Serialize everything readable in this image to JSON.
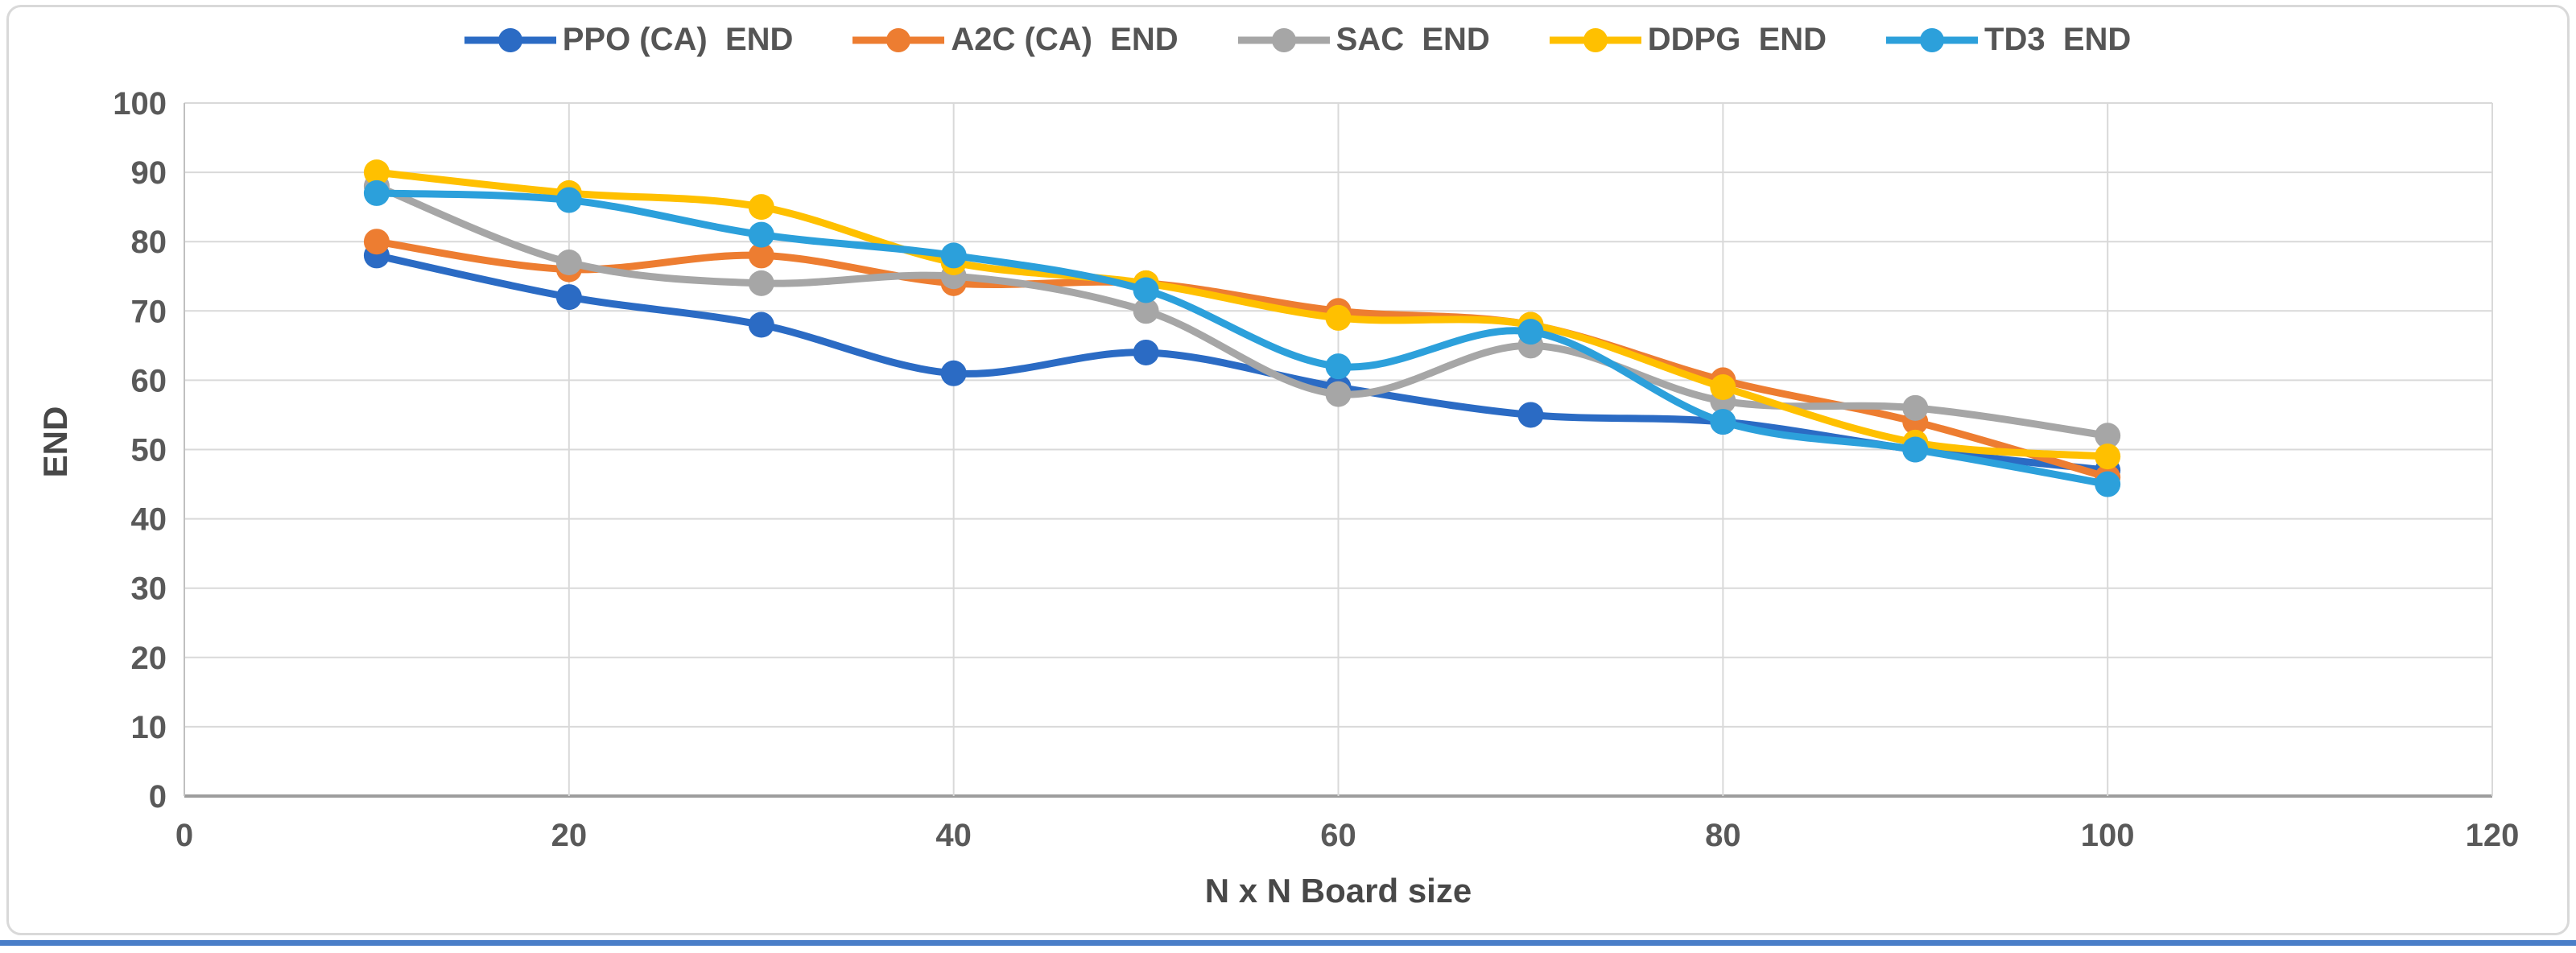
{
  "figure": {
    "border_color": "#d9d9d9",
    "bottom_strip_color": "#4a7ec8",
    "background": "#ffffff"
  },
  "chart_data": {
    "type": "line",
    "title": "",
    "xlabel": "N x N Board size",
    "ylabel": "END",
    "x": [
      10,
      20,
      30,
      40,
      50,
      60,
      70,
      80,
      90,
      100
    ],
    "xlim": [
      0,
      120
    ],
    "ylim": [
      0,
      100
    ],
    "x_ticks": [
      0,
      20,
      40,
      60,
      80,
      100,
      120
    ],
    "y_ticks": [
      0,
      10,
      20,
      30,
      40,
      50,
      60,
      70,
      80,
      90,
      100
    ],
    "grid": true,
    "smooth_lines": true,
    "legend_position": "top",
    "gridline_color": "#d9d9d9",
    "axis_line_color": "#9d9d9d",
    "tick_label_color": "#595959",
    "series": [
      {
        "name": "PPO (CA)  END",
        "color": "#2B6BC4",
        "values": [
          78,
          72,
          68,
          61,
          64,
          59,
          55,
          54,
          50,
          47
        ]
      },
      {
        "name": "A2C (CA)  END",
        "color": "#ED7D31",
        "values": [
          80,
          76,
          78,
          74,
          74,
          70,
          68,
          60,
          54,
          46
        ]
      },
      {
        "name": "SAC  END",
        "color": "#A6A6A6",
        "values": [
          88,
          77,
          74,
          75,
          70,
          58,
          65,
          57,
          56,
          52
        ]
      },
      {
        "name": "DDPG  END",
        "color": "#FFC000",
        "values": [
          90,
          87,
          85,
          77,
          74,
          69,
          68,
          59,
          51,
          49
        ]
      },
      {
        "name": "TD3  END",
        "color": "#2CA0DB",
        "values": [
          87,
          86,
          81,
          78,
          73,
          62,
          67,
          54,
          50,
          45
        ]
      }
    ]
  }
}
